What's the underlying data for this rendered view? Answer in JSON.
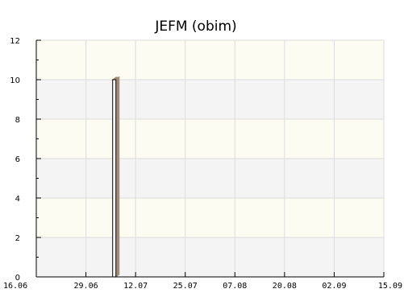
{
  "chart_data": {
    "type": "bar",
    "title": "JEFM (obim)",
    "xlabel": "",
    "ylabel": "",
    "x_ticks": [
      "16.06",
      "29.06",
      "12.07",
      "25.07",
      "07.08",
      "20.08",
      "02.09",
      "15.09"
    ],
    "yticks": [
      0,
      2,
      4,
      6,
      8,
      10,
      12
    ],
    "ylim": [
      0,
      12
    ],
    "grid": true,
    "bars": [
      {
        "date": "2025-07-06",
        "value": 10
      }
    ],
    "colors": {
      "bar_face": "#ffffff",
      "bar_edge": "#000000",
      "bar_side": "#a08c78",
      "plot_bg_a": "#fcfcf2",
      "plot_bg_b": "#f4f4f4",
      "grid": "#dcdcdc"
    }
  }
}
